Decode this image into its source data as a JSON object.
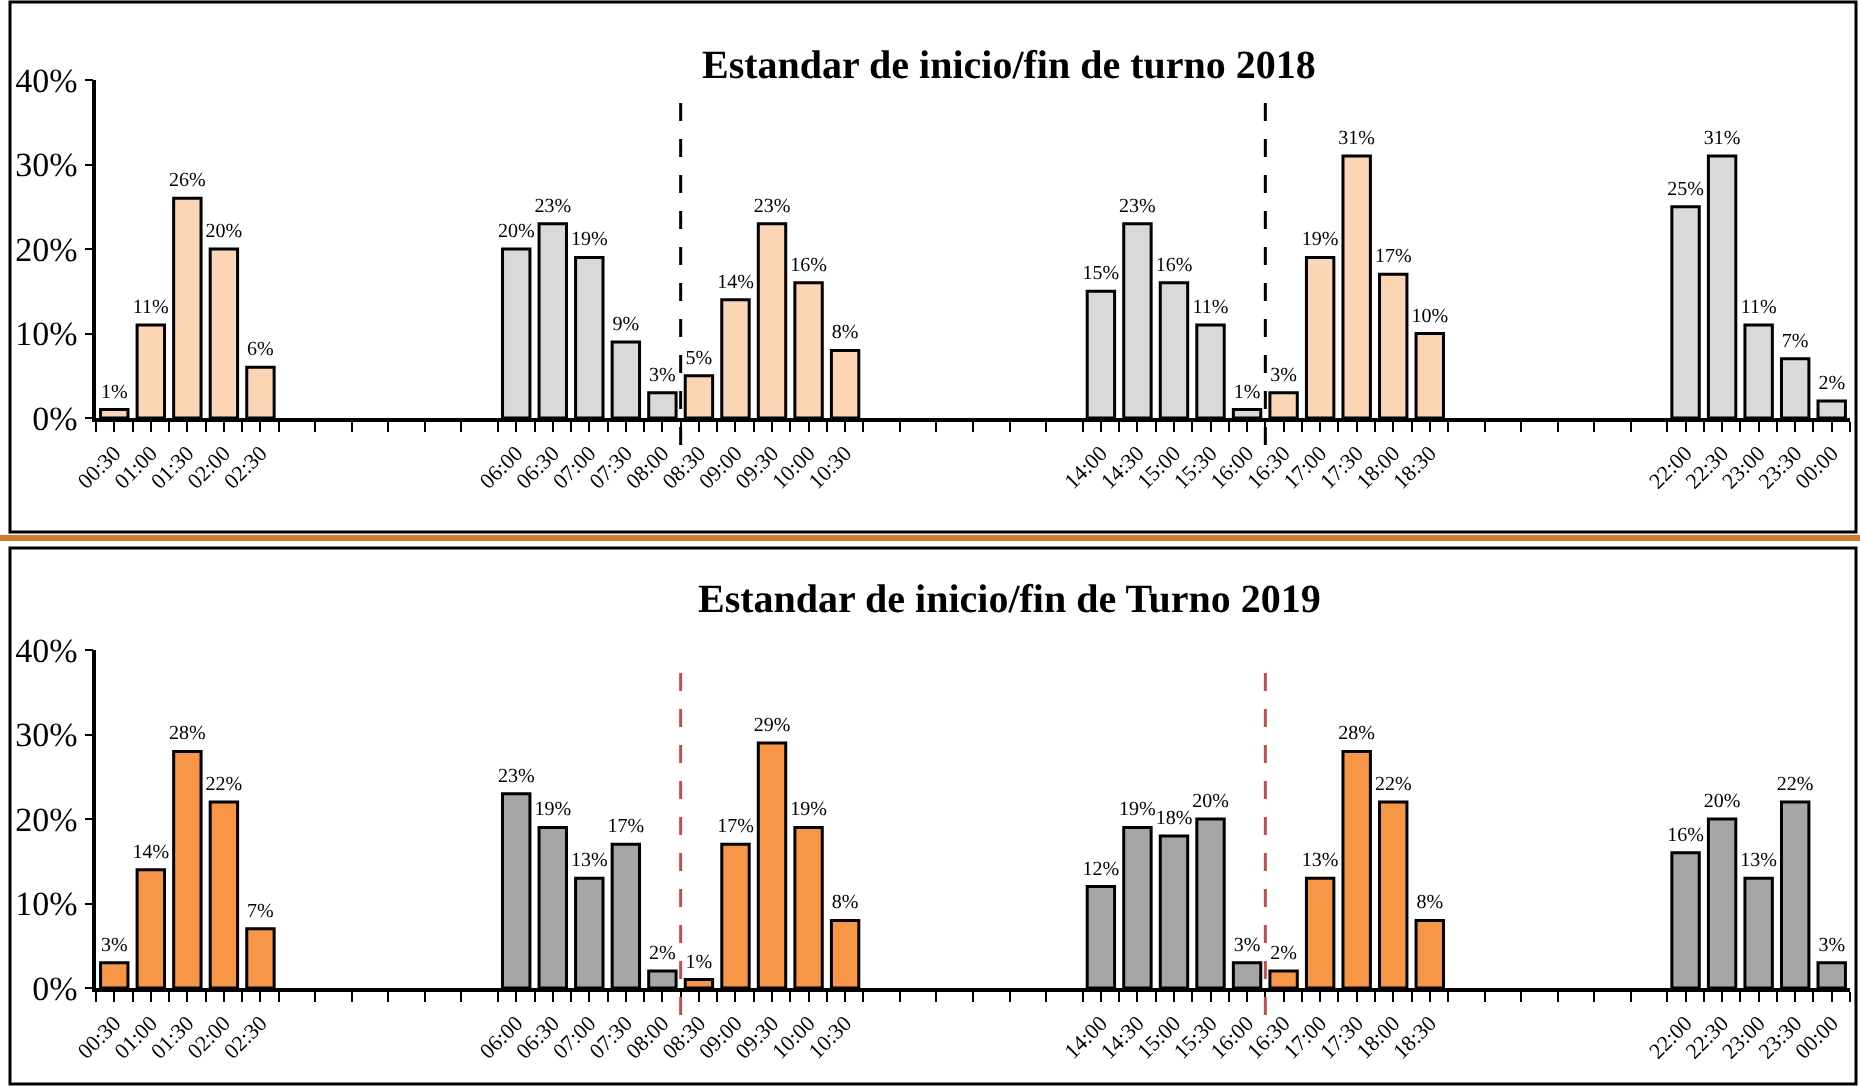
{
  "chart_data": [
    {
      "type": "bar",
      "title": "Estandar de inicio/fin de turno 2018",
      "series": [
        {
          "color": "#fcd5b4",
          "x": [
            0.5,
            1,
            1.5,
            2,
            2.5,
            8.5,
            9,
            9.5,
            10,
            10.5,
            16.5,
            17,
            17.5,
            18,
            18.5
          ],
          "values": [
            1,
            11,
            26,
            20,
            6,
            5,
            14,
            23,
            16,
            8,
            3,
            19,
            31,
            17,
            10
          ],
          "value_labels": [
            "1%",
            "11%",
            "26%",
            "20%",
            "6%",
            "5%",
            "14%",
            "23%",
            "16%",
            "8%",
            "3%",
            "19%",
            "31%",
            "17%",
            "10%"
          ]
        },
        {
          "color": "#d9d9d9",
          "x": [
            6,
            6.5,
            7,
            7.5,
            8,
            14,
            14.5,
            15,
            15.5,
            16,
            22,
            22.5,
            23,
            23.5,
            24
          ],
          "values": [
            20,
            23,
            19,
            9,
            3,
            15,
            23,
            16,
            11,
            1,
            25,
            31,
            11,
            7,
            2
          ],
          "value_labels": [
            "20%",
            "23%",
            "19%",
            "9%",
            "3%",
            "15%",
            "23%",
            "16%",
            "11%",
            "1%",
            "25%",
            "31%",
            "11%",
            "7%",
            "2%"
          ]
        }
      ],
      "xlim": [
        0.25,
        24.25
      ],
      "xticks": [
        {
          "value": 0.5,
          "label": "00:30"
        },
        {
          "value": 1,
          "label": "01:00"
        },
        {
          "value": 1.5,
          "label": "01:30"
        },
        {
          "value": 2,
          "label": "02:00"
        },
        {
          "value": 2.5,
          "label": "02:30"
        },
        {
          "value": 6,
          "label": "06:00"
        },
        {
          "value": 6.5,
          "label": "06:30"
        },
        {
          "value": 7,
          "label": "07:00"
        },
        {
          "value": 7.5,
          "label": "07:30"
        },
        {
          "value": 8,
          "label": "08:00"
        },
        {
          "value": 8.5,
          "label": "08:30"
        },
        {
          "value": 9,
          "label": "09:00"
        },
        {
          "value": 9.5,
          "label": "09:30"
        },
        {
          "value": 10,
          "label": "10:00"
        },
        {
          "value": 10.5,
          "label": "10:30"
        },
        {
          "value": 14,
          "label": "14:00"
        },
        {
          "value": 14.5,
          "label": "14:30"
        },
        {
          "value": 15,
          "label": "15:00"
        },
        {
          "value": 15.5,
          "label": "15:30"
        },
        {
          "value": 16,
          "label": "16:00"
        },
        {
          "value": 16.5,
          "label": "16:30"
        },
        {
          "value": 17,
          "label": "17:00"
        },
        {
          "value": 17.5,
          "label": "17:30"
        },
        {
          "value": 18,
          "label": "18:00"
        },
        {
          "value": 18.5,
          "label": "18:30"
        },
        {
          "value": 22,
          "label": "22:00"
        },
        {
          "value": 22.5,
          "label": "22:30"
        },
        {
          "value": 23,
          "label": "23:00"
        },
        {
          "value": 23.5,
          "label": "23:30"
        },
        {
          "value": 24,
          "label": "00:00"
        },
        {
          "value": 0.25,
          "label": null
        },
        {
          "value": 0.75,
          "label": null
        },
        {
          "value": 1.25,
          "label": null
        },
        {
          "value": 1.75,
          "label": null
        },
        {
          "value": 2.25,
          "label": null
        },
        {
          "value": 2.75,
          "label": null
        },
        {
          "value": 3.25,
          "label": null
        },
        {
          "value": 3.75,
          "label": null
        },
        {
          "value": 4.25,
          "label": null
        },
        {
          "value": 4.75,
          "label": null
        },
        {
          "value": 5.25,
          "label": null
        },
        {
          "value": 5.75,
          "label": null
        },
        {
          "value": 6.25,
          "label": null
        },
        {
          "value": 6.75,
          "label": null
        },
        {
          "value": 7.25,
          "label": null
        },
        {
          "value": 7.75,
          "label": null
        },
        {
          "value": 8.25,
          "label": null
        },
        {
          "value": 8.75,
          "label": null
        },
        {
          "value": 9.25,
          "label": null
        },
        {
          "value": 9.75,
          "label": null
        },
        {
          "value": 10.25,
          "label": null
        },
        {
          "value": 10.75,
          "label": null
        },
        {
          "value": 11.25,
          "label": null
        },
        {
          "value": 11.75,
          "label": null
        },
        {
          "value": 12.25,
          "label": null
        },
        {
          "value": 12.75,
          "label": null
        },
        {
          "value": 13.25,
          "label": null
        },
        {
          "value": 13.75,
          "label": null
        },
        {
          "value": 14.25,
          "label": null
        },
        {
          "value": 14.75,
          "label": null
        },
        {
          "value": 15.25,
          "label": null
        },
        {
          "value": 15.75,
          "label": null
        },
        {
          "value": 16.25,
          "label": null
        },
        {
          "value": 16.75,
          "label": null
        },
        {
          "value": 17.25,
          "label": null
        },
        {
          "value": 17.75,
          "label": null
        },
        {
          "value": 18.25,
          "label": null
        },
        {
          "value": 18.75,
          "label": null
        },
        {
          "value": 19.25,
          "label": null
        },
        {
          "value": 19.75,
          "label": null
        },
        {
          "value": 20.25,
          "label": null
        },
        {
          "value": 20.75,
          "label": null
        },
        {
          "value": 21.25,
          "label": null
        },
        {
          "value": 21.75,
          "label": null
        },
        {
          "value": 22.25,
          "label": null
        },
        {
          "value": 22.75,
          "label": null
        },
        {
          "value": 23.25,
          "label": null
        },
        {
          "value": 23.75,
          "label": null
        },
        {
          "value": 24.25,
          "label": null
        }
      ],
      "ylim": [
        0,
        40
      ],
      "yticks": [
        {
          "value": 0,
          "label": "0%"
        },
        {
          "value": 10,
          "label": "10%"
        },
        {
          "value": 20,
          "label": "20%"
        },
        {
          "value": 30,
          "label": "30%"
        },
        {
          "value": 40,
          "label": "40%"
        }
      ],
      "ref_lines": [
        {
          "axis": "x",
          "value": 8.25,
          "color": "#000000",
          "line_style": "dashed"
        },
        {
          "axis": "x",
          "value": 16.25,
          "color": "#000000",
          "line_style": "dashed"
        }
      ]
    },
    {
      "type": "bar",
      "title": "Estandar de inicio/fin de Turno 2019",
      "series": [
        {
          "color": "#f79646",
          "x": [
            0.5,
            1,
            1.5,
            2,
            2.5,
            8.5,
            9,
            9.5,
            10,
            10.5,
            16.5,
            17,
            17.5,
            18,
            18.5
          ],
          "values": [
            3,
            14,
            28,
            22,
            7,
            1,
            17,
            29,
            19,
            8,
            2,
            13,
            28,
            22,
            8
          ],
          "value_labels": [
            "3%",
            "14%",
            "28%",
            "22%",
            "7%",
            "1%",
            "17%",
            "29%",
            "19%",
            "8%",
            "2%",
            "13%",
            "28%",
            "22%",
            "8%"
          ]
        },
        {
          "color": "#a6a6a6",
          "x": [
            6,
            6.5,
            7,
            7.5,
            8,
            14,
            14.5,
            15,
            15.5,
            16,
            22,
            22.5,
            23,
            23.5,
            24
          ],
          "values": [
            23,
            19,
            13,
            17,
            2,
            12,
            19,
            18,
            20,
            3,
            16,
            20,
            13,
            22,
            3
          ],
          "value_labels": [
            "23%",
            "19%",
            "13%",
            "17%",
            "2%",
            "12%",
            "19%",
            "18%",
            "20%",
            "3%",
            "16%",
            "20%",
            "13%",
            "22%",
            "3%"
          ]
        }
      ],
      "xlim": [
        0.25,
        24.25
      ],
      "xticks": [
        {
          "value": 0.5,
          "label": "00:30"
        },
        {
          "value": 1,
          "label": "01:00"
        },
        {
          "value": 1.5,
          "label": "01:30"
        },
        {
          "value": 2,
          "label": "02:00"
        },
        {
          "value": 2.5,
          "label": "02:30"
        },
        {
          "value": 6,
          "label": "06:00"
        },
        {
          "value": 6.5,
          "label": "06:30"
        },
        {
          "value": 7,
          "label": "07:00"
        },
        {
          "value": 7.5,
          "label": "07:30"
        },
        {
          "value": 8,
          "label": "08:00"
        },
        {
          "value": 8.5,
          "label": "08:30"
        },
        {
          "value": 9,
          "label": "09:00"
        },
        {
          "value": 9.5,
          "label": "09:30"
        },
        {
          "value": 10,
          "label": "10:00"
        },
        {
          "value": 10.5,
          "label": "10:30"
        },
        {
          "value": 14,
          "label": "14:00"
        },
        {
          "value": 14.5,
          "label": "14:30"
        },
        {
          "value": 15,
          "label": "15:00"
        },
        {
          "value": 15.5,
          "label": "15:30"
        },
        {
          "value": 16,
          "label": "16:00"
        },
        {
          "value": 16.5,
          "label": "16:30"
        },
        {
          "value": 17,
          "label": "17:00"
        },
        {
          "value": 17.5,
          "label": "17:30"
        },
        {
          "value": 18,
          "label": "18:00"
        },
        {
          "value": 18.5,
          "label": "18:30"
        },
        {
          "value": 22,
          "label": "22:00"
        },
        {
          "value": 22.5,
          "label": "22:30"
        },
        {
          "value": 23,
          "label": "23:00"
        },
        {
          "value": 23.5,
          "label": "23:30"
        },
        {
          "value": 24,
          "label": "00:00"
        },
        {
          "value": 0.25,
          "label": null
        },
        {
          "value": 0.75,
          "label": null
        },
        {
          "value": 1.25,
          "label": null
        },
        {
          "value": 1.75,
          "label": null
        },
        {
          "value": 2.25,
          "label": null
        },
        {
          "value": 2.75,
          "label": null
        },
        {
          "value": 3.25,
          "label": null
        },
        {
          "value": 3.75,
          "label": null
        },
        {
          "value": 4.25,
          "label": null
        },
        {
          "value": 4.75,
          "label": null
        },
        {
          "value": 5.25,
          "label": null
        },
        {
          "value": 5.75,
          "label": null
        },
        {
          "value": 6.25,
          "label": null
        },
        {
          "value": 6.75,
          "label": null
        },
        {
          "value": 7.25,
          "label": null
        },
        {
          "value": 7.75,
          "label": null
        },
        {
          "value": 8.25,
          "label": null
        },
        {
          "value": 8.75,
          "label": null
        },
        {
          "value": 9.25,
          "label": null
        },
        {
          "value": 9.75,
          "label": null
        },
        {
          "value": 10.25,
          "label": null
        },
        {
          "value": 10.75,
          "label": null
        },
        {
          "value": 11.25,
          "label": null
        },
        {
          "value": 11.75,
          "label": null
        },
        {
          "value": 12.25,
          "label": null
        },
        {
          "value": 12.75,
          "label": null
        },
        {
          "value": 13.25,
          "label": null
        },
        {
          "value": 13.75,
          "label": null
        },
        {
          "value": 14.25,
          "label": null
        },
        {
          "value": 14.75,
          "label": null
        },
        {
          "value": 15.25,
          "label": null
        },
        {
          "value": 15.75,
          "label": null
        },
        {
          "value": 16.25,
          "label": null
        },
        {
          "value": 16.75,
          "label": null
        },
        {
          "value": 17.25,
          "label": null
        },
        {
          "value": 17.75,
          "label": null
        },
        {
          "value": 18.25,
          "label": null
        },
        {
          "value": 18.75,
          "label": null
        },
        {
          "value": 19.25,
          "label": null
        },
        {
          "value": 19.75,
          "label": null
        },
        {
          "value": 20.25,
          "label": null
        },
        {
          "value": 20.75,
          "label": null
        },
        {
          "value": 21.25,
          "label": null
        },
        {
          "value": 21.75,
          "label": null
        },
        {
          "value": 22.25,
          "label": null
        },
        {
          "value": 22.75,
          "label": null
        },
        {
          "value": 23.25,
          "label": null
        },
        {
          "value": 23.75,
          "label": null
        },
        {
          "value": 24.25,
          "label": null
        }
      ],
      "ylim": [
        0,
        40
      ],
      "yticks": [
        {
          "value": 0,
          "label": "0%"
        },
        {
          "value": 10,
          "label": "10%"
        },
        {
          "value": 20,
          "label": "20%"
        },
        {
          "value": 30,
          "label": "30%"
        },
        {
          "value": 40,
          "label": "40%"
        }
      ],
      "ref_lines": [
        {
          "axis": "x",
          "value": 8.25,
          "color": "#c0504d",
          "line_style": "dashed"
        },
        {
          "axis": "x",
          "value": 16.25,
          "color": "#c0504d",
          "line_style": "dashed"
        }
      ]
    }
  ]
}
